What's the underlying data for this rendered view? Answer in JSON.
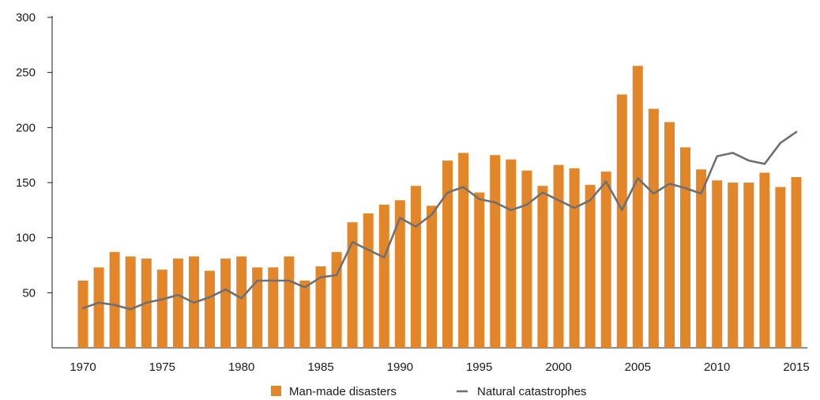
{
  "chart_data": {
    "type": "bar",
    "x": [
      1970,
      1971,
      1972,
      1973,
      1974,
      1975,
      1976,
      1977,
      1978,
      1979,
      1980,
      1981,
      1982,
      1983,
      1984,
      1985,
      1986,
      1987,
      1988,
      1989,
      1990,
      1991,
      1992,
      1993,
      1994,
      1995,
      1996,
      1997,
      1998,
      1999,
      2000,
      2001,
      2002,
      2003,
      2004,
      2005,
      2006,
      2007,
      2008,
      2009,
      2010,
      2011,
      2012,
      2013,
      2014,
      2015
    ],
    "series": [
      {
        "name": "Man-made disasters",
        "type": "bar",
        "color": "#e3862a",
        "values": [
          61,
          73,
          87,
          83,
          81,
          71,
          81,
          83,
          70,
          81,
          83,
          73,
          73,
          83,
          61,
          74,
          87,
          114,
          122,
          130,
          134,
          147,
          129,
          170,
          177,
          141,
          175,
          171,
          161,
          147,
          166,
          163,
          148,
          160,
          230,
          256,
          217,
          205,
          182,
          162,
          152,
          150,
          150,
          159,
          146,
          155
        ]
      },
      {
        "name": "Natural catastrophes",
        "type": "line",
        "color": "#707070",
        "values": [
          36,
          41,
          39,
          35,
          41,
          44,
          48,
          41,
          46,
          53,
          45,
          61,
          61,
          61,
          55,
          64,
          66,
          96,
          89,
          82,
          118,
          110,
          121,
          141,
          146,
          135,
          132,
          125,
          130,
          141,
          134,
          127,
          134,
          151,
          125,
          154,
          140,
          149,
          145,
          140,
          174,
          177,
          170,
          167,
          186,
          196
        ]
      }
    ],
    "x_ticks": [
      "1970",
      "1975",
      "1980",
      "1985",
      "1990",
      "1995",
      "2000",
      "2005",
      "2010",
      "2015"
    ],
    "y_ticks": [
      "50",
      "100",
      "150",
      "200",
      "250",
      "300"
    ],
    "ylim": [
      0,
      300
    ],
    "title": "",
    "xlabel": "",
    "ylabel": "",
    "grid": false,
    "legend_position": "bottom-center"
  }
}
